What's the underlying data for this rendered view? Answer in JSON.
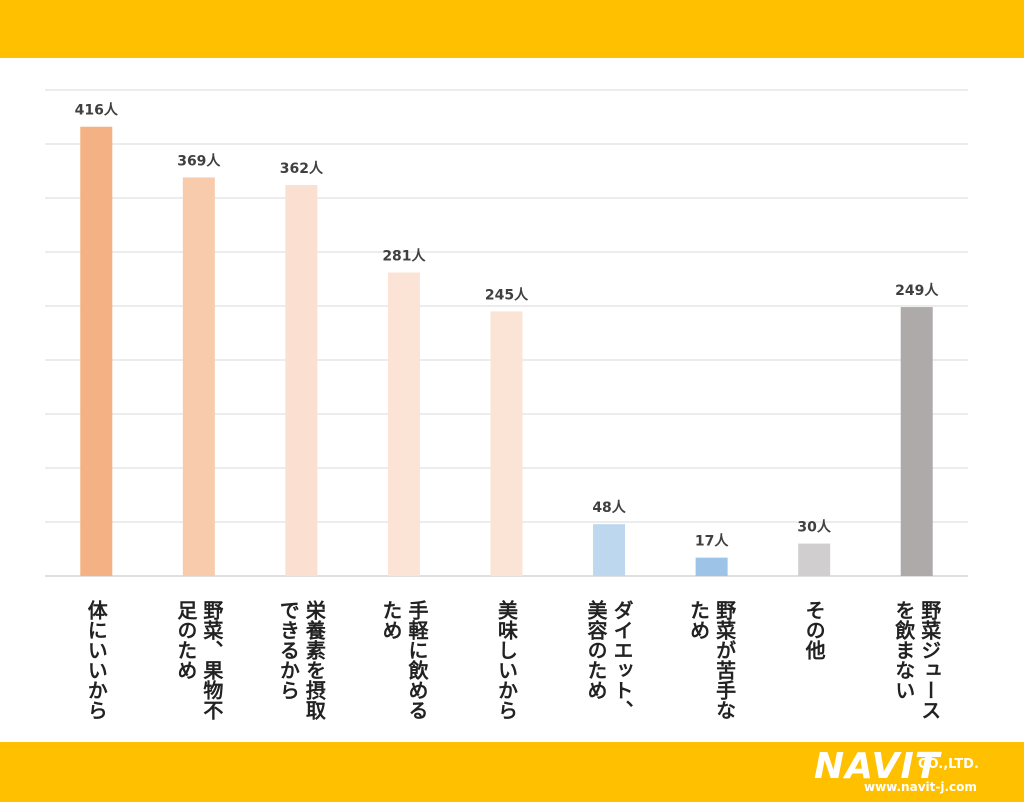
{
  "chart_data": {
    "type": "bar",
    "title": "",
    "xlabel": "",
    "ylabel": "",
    "ylim": [
      0,
      450
    ],
    "grid": true,
    "categories": [
      "体にいいから",
      "野菜、果物不足のため",
      "栄養素を摂取できるから",
      "手軽に飲めるため",
      "美味しいから",
      "ダイエット、美容のため",
      "野菜が苦手なため",
      "その他",
      "野菜ジュースを飲まない"
    ],
    "category_lines": [
      [
        "体にいいから"
      ],
      [
        "野菜、果物不",
        "足のため"
      ],
      [
        "栄養素を摂取",
        "できるから"
      ],
      [
        "手軽に飲める",
        "ため"
      ],
      [
        "美味しいから"
      ],
      [
        "ダイエット、",
        "美容のため"
      ],
      [
        "野菜が苦手な",
        "ため"
      ],
      [
        "その他"
      ],
      [
        "野菜ジュース",
        "を飲まない"
      ]
    ],
    "values": [
      416,
      369,
      362,
      281,
      245,
      48,
      17,
      30,
      249
    ],
    "value_labels": [
      "416人",
      "369人",
      "362人",
      "281人",
      "245人",
      "48人",
      "17人",
      "30人",
      "249人"
    ],
    "colors": [
      "#F4B183",
      "#F8CBAD",
      "#FBE0D1",
      "#FBE4D6",
      "#FBE4D6",
      "#BDD7EE",
      "#9DC3E6",
      "#D0CECE",
      "#AEAAAA"
    ]
  },
  "logo": {
    "main": "NAVIT",
    "company": "CO.,LTD.",
    "url": "www.navit-j.com"
  }
}
